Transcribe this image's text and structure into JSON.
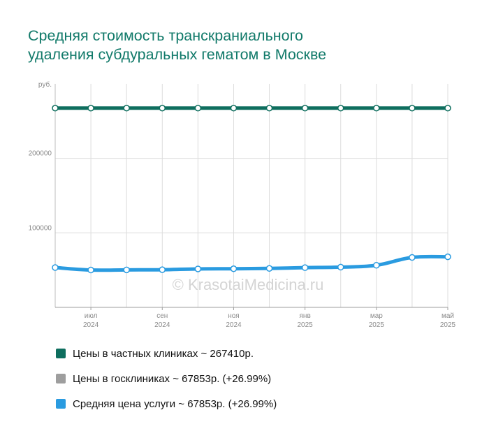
{
  "title_lines": [
    "Средняя стоимость транскраниального",
    "удаления субдуральных гематом в Москве"
  ],
  "watermark": "© KrasotaiMedicina.ru",
  "legend": [
    {
      "label": "Цены в частных клиниках ~ 267410р.",
      "color": "#0e6e5e"
    },
    {
      "label": "Цены в госклиниках ~ 67853р. (+26.99%)",
      "color": "#9e9e9e"
    },
    {
      "label": "Средняя цена услуги ~ 67853р. (+26.99%)",
      "color": "#2a9be0"
    }
  ],
  "chart_data": {
    "type": "line",
    "y_unit_label": "руб.",
    "ylim": [
      0,
      300000
    ],
    "y_ticks": [
      {
        "value": 100000,
        "label": "100000"
      },
      {
        "value": 200000,
        "label": "200000"
      }
    ],
    "x_ticks": [
      {
        "index": 1,
        "label": [
          "июл",
          "2024"
        ]
      },
      {
        "index": 3,
        "label": [
          "сен",
          "2024"
        ]
      },
      {
        "index": 5,
        "label": [
          "ноя",
          "2024"
        ]
      },
      {
        "index": 7,
        "label": [
          "янв",
          "2025"
        ]
      },
      {
        "index": 9,
        "label": [
          "мар",
          "2025"
        ]
      },
      {
        "index": 11,
        "label": [
          "май",
          "2025"
        ]
      }
    ],
    "x": [
      "2024-06",
      "2024-07",
      "2024-08",
      "2024-09",
      "2024-10",
      "2024-11",
      "2024-12",
      "2025-01",
      "2025-02",
      "2025-03",
      "2025-04",
      "2025-05"
    ],
    "series": [
      {
        "name": "Цены в частных клиниках",
        "color": "#0e6e5e",
        "values": [
          267410,
          267410,
          267410,
          267410,
          267410,
          267410,
          267410,
          267410,
          267410,
          267410,
          267410,
          267410
        ]
      },
      {
        "name": "Средняя цена услуги",
        "color": "#2a9be0",
        "values": [
          53400,
          50100,
          50300,
          50500,
          51600,
          51800,
          52300,
          53300,
          54000,
          56500,
          67000,
          67853
        ]
      }
    ],
    "grid": true
  }
}
